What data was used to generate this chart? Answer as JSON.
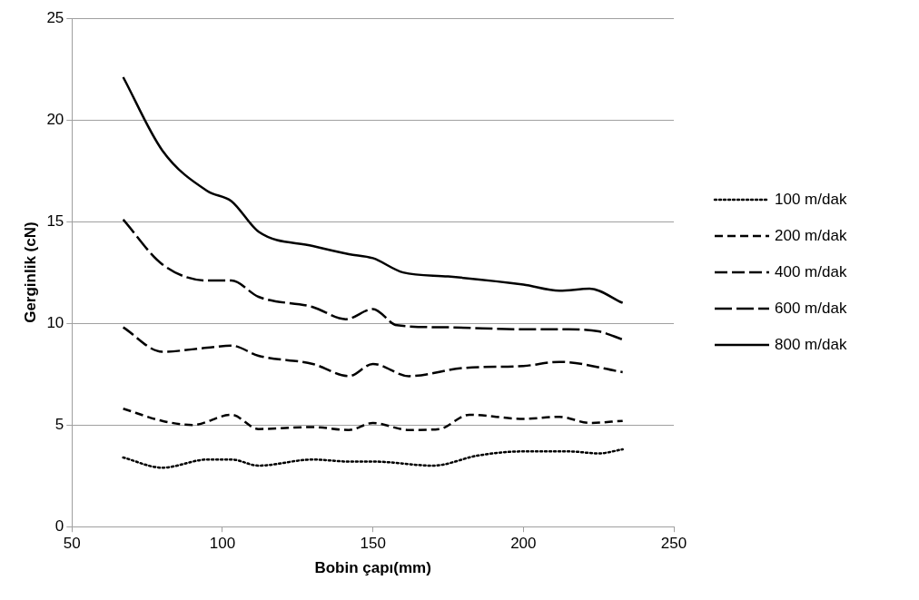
{
  "chart_data": {
    "type": "line",
    "xlabel": "Bobin çapı(mm)",
    "ylabel": "Gerginlik (cN)",
    "xlim": [
      50,
      250
    ],
    "xticks": [
      50,
      100,
      150,
      200,
      250
    ],
    "ylim": [
      0,
      25
    ],
    "yticks": [
      0,
      5,
      10,
      15,
      20,
      25
    ],
    "grid": "y",
    "legend": "right",
    "marker": "none",
    "series": [
      {
        "name": "100 m/dak",
        "color": "#000000",
        "line_style": "dotted",
        "x": [
          67,
          80,
          95,
          103,
          112,
          130,
          142,
          150,
          170,
          185,
          200,
          215,
          225,
          233
        ],
        "values": [
          3.4,
          2.9,
          3.3,
          3.3,
          3.0,
          3.3,
          3.2,
          3.2,
          3.0,
          3.5,
          3.7,
          3.7,
          3.6,
          3.8
        ]
      },
      {
        "name": "200 m/dak",
        "color": "#000000",
        "line_style": "dashed",
        "x": [
          67,
          80,
          90,
          103,
          112,
          130,
          142,
          150,
          162,
          172,
          182,
          200,
          212,
          222,
          233
        ],
        "values": [
          5.8,
          5.2,
          5.0,
          5.5,
          4.8,
          4.9,
          4.75,
          5.1,
          4.75,
          4.8,
          5.5,
          5.3,
          5.4,
          5.1,
          5.2
        ]
      },
      {
        "name": "400 m/dak",
        "color": "#000000",
        "line_style": "dashed",
        "x": [
          67,
          80,
          95,
          103,
          112,
          130,
          142,
          150,
          162,
          180,
          200,
          212,
          233
        ],
        "values": [
          9.8,
          8.6,
          8.8,
          8.9,
          8.4,
          8.0,
          7.4,
          8.0,
          7.4,
          7.8,
          7.9,
          8.1,
          7.6
        ]
      },
      {
        "name": "600 m/dak",
        "color": "#000000",
        "line_style": "dashed",
        "x": [
          67,
          80,
          95,
          103,
          112,
          130,
          141,
          150,
          158,
          175,
          200,
          215,
          225,
          233
        ],
        "values": [
          15.1,
          12.9,
          12.1,
          12.1,
          11.3,
          10.8,
          10.2,
          10.7,
          9.9,
          9.8,
          9.7,
          9.7,
          9.6,
          9.2
        ]
      },
      {
        "name": "800 m/dak",
        "color": "#000000",
        "line_style": "solid",
        "x": [
          67,
          80,
          95,
          103,
          112,
          130,
          142,
          150,
          160,
          175,
          200,
          212,
          222,
          233
        ],
        "values": [
          22.1,
          18.5,
          16.5,
          16.0,
          14.5,
          13.8,
          13.4,
          13.2,
          12.5,
          12.3,
          11.9,
          11.6,
          11.7,
          11.0
        ]
      }
    ]
  }
}
